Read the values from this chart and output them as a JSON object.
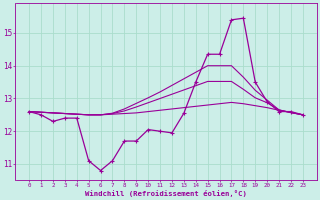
{
  "x": [
    0,
    1,
    2,
    3,
    4,
    5,
    6,
    7,
    8,
    9,
    10,
    11,
    12,
    13,
    14,
    15,
    16,
    17,
    18,
    19,
    20,
    21,
    22,
    23
  ],
  "main_line": [
    12.6,
    12.5,
    12.3,
    12.4,
    12.4,
    11.1,
    10.8,
    11.1,
    11.7,
    11.7,
    12.05,
    12.0,
    11.95,
    12.55,
    13.5,
    14.35,
    14.35,
    15.4,
    15.45,
    13.5,
    12.9,
    12.6,
    12.6,
    12.5
  ],
  "trend1": [
    12.6,
    12.58,
    12.56,
    12.54,
    12.52,
    12.5,
    12.5,
    12.52,
    12.54,
    12.56,
    12.6,
    12.64,
    12.68,
    12.72,
    12.76,
    12.8,
    12.84,
    12.88,
    12.84,
    12.78,
    12.72,
    12.64,
    12.57,
    12.5
  ],
  "trend2": [
    12.6,
    12.58,
    12.56,
    12.54,
    12.52,
    12.5,
    12.5,
    12.54,
    12.62,
    12.74,
    12.87,
    13.0,
    13.13,
    13.26,
    13.39,
    13.52,
    13.52,
    13.52,
    13.28,
    13.02,
    12.87,
    12.65,
    12.57,
    12.5
  ],
  "trend3": [
    12.6,
    12.58,
    12.56,
    12.54,
    12.52,
    12.5,
    12.5,
    12.55,
    12.68,
    12.85,
    13.02,
    13.2,
    13.4,
    13.6,
    13.8,
    14.0,
    14.0,
    14.0,
    13.65,
    13.25,
    12.95,
    12.65,
    12.57,
    12.5
  ],
  "line_color": "#990099",
  "bg_color": "#cceee8",
  "grid_color": "#aaddcc",
  "xlabel": "Windchill (Refroidissement éolien,°C)",
  "ylim": [
    10.5,
    15.9
  ],
  "yticks": [
    11,
    12,
    13,
    14,
    15
  ],
  "xticks": [
    0,
    1,
    2,
    3,
    4,
    5,
    6,
    7,
    8,
    9,
    10,
    11,
    12,
    13,
    14,
    15,
    16,
    17,
    18,
    19,
    20,
    21,
    22,
    23
  ]
}
